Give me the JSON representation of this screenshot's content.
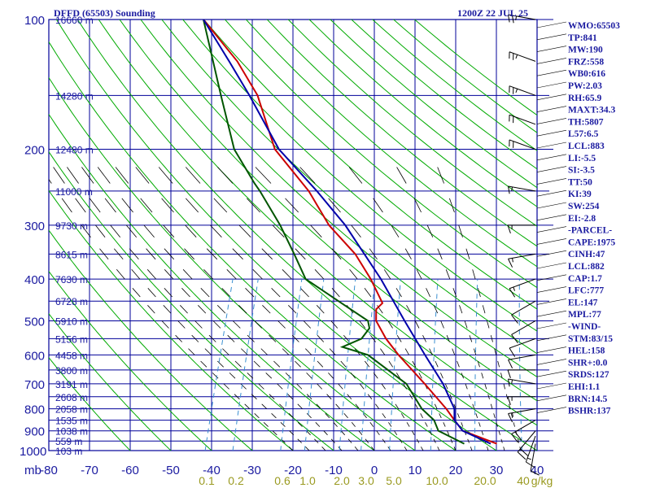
{
  "chart_data": {
    "type": "line",
    "title": "DFFD (65503) Sounding",
    "time": "1200Z 22 JUL 25",
    "unit_label": "mb",
    "x_ticks": [
      -80,
      -70,
      -60,
      -50,
      -40,
      -30,
      -20,
      -10,
      0,
      10,
      20,
      30,
      40
    ],
    "y_ticks": [
      100,
      200,
      300,
      400,
      500,
      600,
      700,
      800,
      900,
      1000
    ],
    "xlim": [
      -80,
      40
    ],
    "ylim": [
      100,
      1000
    ],
    "y_scale": "log",
    "heights": [
      {
        "p": 100,
        "label": "16660 m"
      },
      {
        "p": 150,
        "label": "14280 m"
      },
      {
        "p": 200,
        "label": "12480 m"
      },
      {
        "p": 250,
        "label": "11000 m"
      },
      {
        "p": 300,
        "label": "9730 m"
      },
      {
        "p": 350,
        "label": "8615 m"
      },
      {
        "p": 400,
        "label": "7630 m"
      },
      {
        "p": 450,
        "label": "6728 m"
      },
      {
        "p": 500,
        "label": "5910 m"
      },
      {
        "p": 550,
        "label": "5156 m"
      },
      {
        "p": 600,
        "label": "4458 m"
      },
      {
        "p": 650,
        "label": "3800 m"
      },
      {
        "p": 700,
        "label": "3191 m"
      },
      {
        "p": 750,
        "label": "2608 m"
      },
      {
        "p": 800,
        "label": "2058 m"
      },
      {
        "p": 850,
        "label": "1535 m"
      },
      {
        "p": 900,
        "label": "1038 m"
      },
      {
        "p": 950,
        "label": "559 m"
      },
      {
        "p": 1000,
        "label": "103 m"
      }
    ],
    "mixing_ratio_labels": [
      "0.1",
      "0.2",
      "0.6",
      "1.0",
      "2.0",
      "3.0",
      "5.0",
      "10.0",
      "20.0",
      "40",
      "g/kg"
    ],
    "series": [
      {
        "color": "#cc0000",
        "points": [
          [
            964,
            29.5
          ],
          [
            900,
            20
          ],
          [
            850,
            17
          ],
          [
            800,
            14
          ],
          [
            700,
            6.5
          ],
          [
            600,
            -2.5
          ],
          [
            550,
            -7
          ],
          [
            500,
            -11
          ],
          [
            470,
            -12
          ],
          [
            455,
            -11
          ],
          [
            400,
            -16
          ],
          [
            350,
            -22
          ],
          [
            300,
            -31
          ],
          [
            250,
            -39
          ],
          [
            200,
            -51
          ],
          [
            150,
            -60
          ],
          [
            125,
            -68
          ],
          [
            100,
            -80
          ]
        ]
      },
      {
        "color": "#005500",
        "points": [
          [
            964,
            21.5
          ],
          [
            900,
            14
          ],
          [
            850,
            12
          ],
          [
            800,
            8
          ],
          [
            700,
            2
          ],
          [
            600,
            -10
          ],
          [
            575,
            -17
          ],
          [
            550,
            -13
          ],
          [
            520,
            -12
          ],
          [
            500,
            -13
          ],
          [
            450,
            -22
          ],
          [
            400,
            -32
          ],
          [
            350,
            -37
          ],
          [
            300,
            -43
          ],
          [
            250,
            -51
          ],
          [
            240,
            -53
          ],
          [
            200,
            -61
          ],
          [
            150,
            -69
          ],
          [
            100,
            -80
          ]
        ]
      },
      {
        "color": "#0000aa",
        "points": [
          [
            964,
            28
          ],
          [
            900,
            20
          ],
          [
            850,
            17
          ],
          [
            800,
            16
          ],
          [
            700,
            11
          ],
          [
            600,
            4
          ],
          [
            500,
            -4
          ],
          [
            400,
            -13.5
          ],
          [
            300,
            -27
          ],
          [
            250,
            -37
          ],
          [
            200,
            -50
          ],
          [
            150,
            -62
          ],
          [
            125,
            -70
          ],
          [
            100,
            -80
          ]
        ]
      }
    ],
    "wind_barbs": [
      {
        "p": 964,
        "dir": 190,
        "spd": 10
      },
      {
        "p": 925,
        "dir": 200,
        "spd": 15
      },
      {
        "p": 900,
        "dir": 220,
        "spd": 20
      },
      {
        "p": 850,
        "dir": 240,
        "spd": 20
      },
      {
        "p": 800,
        "dir": 260,
        "spd": 15
      },
      {
        "p": 750,
        "dir": 270,
        "spd": 15
      },
      {
        "p": 700,
        "dir": 280,
        "spd": 15
      },
      {
        "p": 650,
        "dir": 270,
        "spd": 10
      },
      {
        "p": 600,
        "dir": 260,
        "spd": 10
      },
      {
        "p": 550,
        "dir": 250,
        "spd": 10
      },
      {
        "p": 500,
        "dir": 240,
        "spd": 10
      },
      {
        "p": 450,
        "dir": 240,
        "spd": 10
      },
      {
        "p": 400,
        "dir": 250,
        "spd": 15
      },
      {
        "p": 350,
        "dir": 260,
        "spd": 15
      },
      {
        "p": 300,
        "dir": 270,
        "spd": 15
      },
      {
        "p": 250,
        "dir": 280,
        "spd": 15
      },
      {
        "p": 200,
        "dir": 290,
        "spd": 20
      },
      {
        "p": 175,
        "dir": 290,
        "spd": 20
      },
      {
        "p": 150,
        "dir": 290,
        "spd": 25
      },
      {
        "p": 125,
        "dir": 290,
        "spd": 25
      },
      {
        "p": 100,
        "dir": 280,
        "spd": 25
      }
    ],
    "indices": [
      "WMO:65503",
      "TP:841",
      "MW:190",
      "FRZ:558",
      "WB0:616",
      "PW:2.03",
      "RH:65.9",
      "MAXT:34.3",
      "TH:5807",
      "L57:6.5",
      "LCL:883",
      "LI:-5.5",
      "SI:-3.5",
      "TT:50",
      "KI:39",
      "SW:254",
      "EI:-2.8",
      "-PARCEL-",
      "CAPE:1975",
      "CINH:47",
      "LCL:882",
      "CAP:1.7",
      "LFC:777",
      "EL:147",
      "MPL:77",
      "-WIND-",
      "STM:83/15",
      "HEL:158",
      "SHR+:0.0",
      "SRDS:127",
      "EHI:1.1",
      "BRN:14.5",
      "BSHR:137"
    ]
  },
  "colors": {
    "grid": "#000099",
    "dry_adiabat": "#00aa00",
    "moist_adiabat": "#000000",
    "mixing_ratio": "#3a8fd0",
    "temperature": "#cc0000",
    "dewpoint": "#005500",
    "parcel": "#0000aa",
    "wind_barb": "#000000"
  }
}
